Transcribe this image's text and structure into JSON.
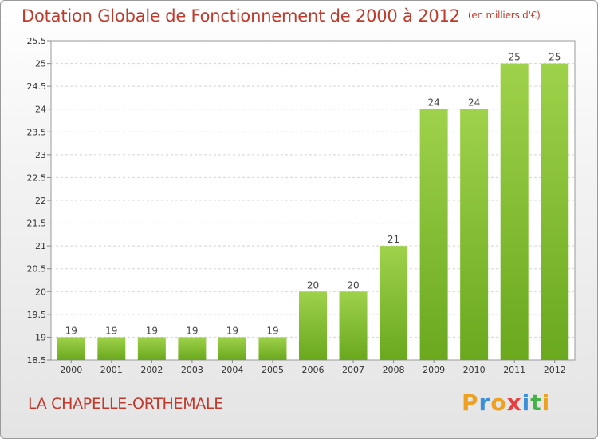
{
  "header": {
    "title": "Dotation Globale de Fonctionnement de 2000 à 2012",
    "unit": "(en milliers d'€)"
  },
  "footer": {
    "commune": "LA CHAPELLE-ORTHEMALE",
    "logo": {
      "letters": [
        "P",
        "r",
        "o",
        "x",
        "i",
        "t",
        "i"
      ],
      "colors": [
        "#f0a020",
        "#3a8fd8",
        "#f0a020",
        "#e84040",
        "#3a8fd8",
        "#48b048",
        "#f0a020"
      ]
    }
  },
  "chart_data": {
    "type": "bar",
    "title": "Dotation Globale de Fonctionnement de 2000 à 2012",
    "xlabel": "",
    "ylabel": "",
    "categories": [
      "2000",
      "2001",
      "2002",
      "2003",
      "2004",
      "2005",
      "2006",
      "2007",
      "2008",
      "2009",
      "2010",
      "2011",
      "2012"
    ],
    "values": [
      19,
      19,
      19,
      19,
      19,
      19,
      20,
      20,
      21,
      24,
      24,
      25,
      25
    ],
    "data_labels": [
      "19",
      "19",
      "19",
      "19",
      "19",
      "19",
      "20",
      "20",
      "21",
      "24",
      "24",
      "25",
      "25"
    ],
    "ylim": [
      18.5,
      25.5
    ],
    "yticks": [
      "18.5",
      "19",
      "19.5",
      "20",
      "20.5",
      "21",
      "21.5",
      "22",
      "22.5",
      "23",
      "23.5",
      "24",
      "24.5",
      "25",
      "25.5"
    ],
    "grid": true,
    "bar_color": "#7cc030"
  }
}
